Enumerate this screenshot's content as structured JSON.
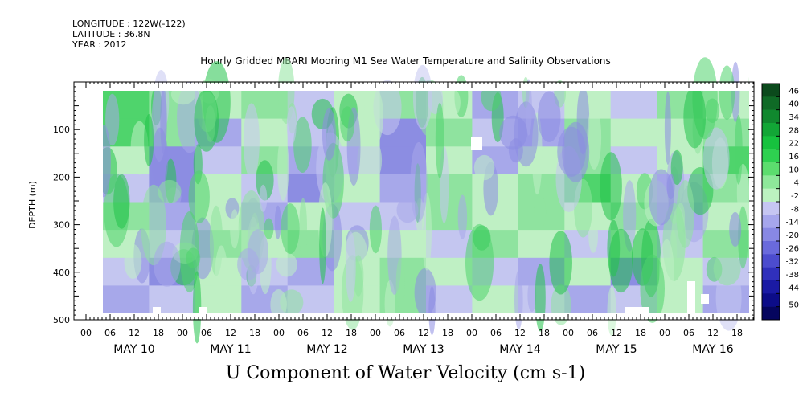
{
  "header": {
    "longitude": "LONGITUDE : 122W(-122)",
    "latitude": "LATITUDE : 36.8N",
    "year": "YEAR : 2012"
  },
  "title": "Hourly Gridded MBARI Mooring M1 Sea Water Temperature and Salinity Observations",
  "bottom_label": "U Component of Water Velocity (cm s-1)",
  "chart_data": {
    "type": "heatmap",
    "title": "Hourly Gridded MBARI Mooring M1 Sea Water Temperature and Salinity Observations",
    "xlabel": "",
    "ylabel": "DEPTH (m)",
    "ylim": [
      500,
      0
    ],
    "y_ticks": [
      100,
      200,
      300,
      400,
      500
    ],
    "y_tick_labels": [
      "100",
      "200",
      "300",
      "400",
      "500"
    ],
    "x_hour_tick_labels": [
      "00",
      "06",
      "12",
      "18",
      "00",
      "06",
      "12",
      "18",
      "00",
      "06",
      "12",
      "18",
      "00",
      "06",
      "12",
      "18",
      "00",
      "06",
      "12",
      "18",
      "00",
      "06",
      "12",
      "18",
      "00",
      "06",
      "12",
      "18"
    ],
    "x_day_labels": [
      "MAY 10",
      "MAY 11",
      "MAY 12",
      "MAY 13",
      "MAY 14",
      "MAY 15",
      "MAY 16"
    ],
    "colorbar": {
      "labels": [
        "46",
        "40",
        "34",
        "28",
        "22",
        "16",
        "10",
        "4",
        "-2",
        "-8",
        "-14",
        "-20",
        "-26",
        "-32",
        "-38",
        "-44",
        "-50"
      ],
      "colors": [
        "#0b4a1c",
        "#0f6a26",
        "#10882e",
        "#12a636",
        "#16c23e",
        "#2ed150",
        "#5cdd6e",
        "#8ee89a",
        "#bcf2c0",
        "#c6c6f2",
        "#a6a6ec",
        "#8888e4",
        "#6a6adc",
        "#4c4cce",
        "#3030bc",
        "#1a1aa4",
        "#0c0c88",
        "#05055e"
      ]
    },
    "field_palette": {
      "strong_green": "#22c34a",
      "green": "#4fd46c",
      "light_green": "#8fe39f",
      "pale_green": "#bff0c4",
      "pale_blue": "#c4c6f0",
      "light_blue": "#a7a8ea",
      "blue": "#8c8de2"
    },
    "pattern": {
      "rows": 8,
      "cols": 14,
      "note": "",
      "values": [
        [
          0,
          1,
          2,
          1,
          3,
          2,
          1,
          2,
          4,
          3,
          2,
          3,
          1,
          2
        ],
        [
          0,
          1,
          4,
          2,
          3,
          2,
          5,
          1,
          3,
          4,
          1,
          2,
          2,
          1
        ],
        [
          2,
          5,
          3,
          1,
          4,
          3,
          5,
          2,
          4,
          2,
          1,
          3,
          2,
          0
        ],
        [
          3,
          5,
          2,
          3,
          5,
          2,
          4,
          1,
          2,
          1,
          0,
          2,
          3,
          1
        ],
        [
          1,
          4,
          2,
          4,
          2,
          3,
          3,
          1,
          2,
          1,
          2,
          1,
          4,
          2
        ],
        [
          2,
          3,
          1,
          2,
          1,
          2,
          2,
          3,
          1,
          2,
          3,
          2,
          3,
          1
        ],
        [
          3,
          5,
          2,
          3,
          4,
          2,
          1,
          2,
          3,
          4,
          2,
          5,
          2,
          3
        ],
        [
          4,
          3,
          2,
          4,
          3,
          2,
          1,
          3,
          2,
          3,
          4,
          3,
          2,
          4
        ]
      ]
    }
  }
}
